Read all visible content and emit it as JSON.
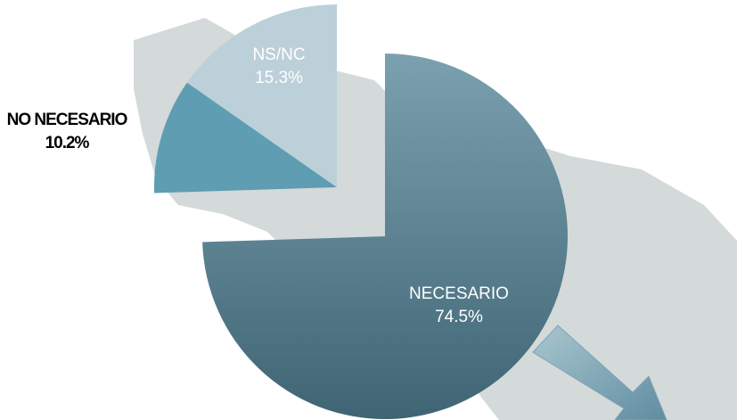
{
  "chart_data": {
    "type": "pie",
    "categories": [
      "NECESARIO",
      "NO NECESARIO",
      "NS/NC"
    ],
    "values": [
      74.5,
      10.2,
      15.3
    ],
    "value_labels": [
      "74.5%",
      "10.2%",
      "15.3%"
    ],
    "colors": [
      "#5f8798",
      "#5e9db2",
      "#bcd0d9"
    ]
  }
}
